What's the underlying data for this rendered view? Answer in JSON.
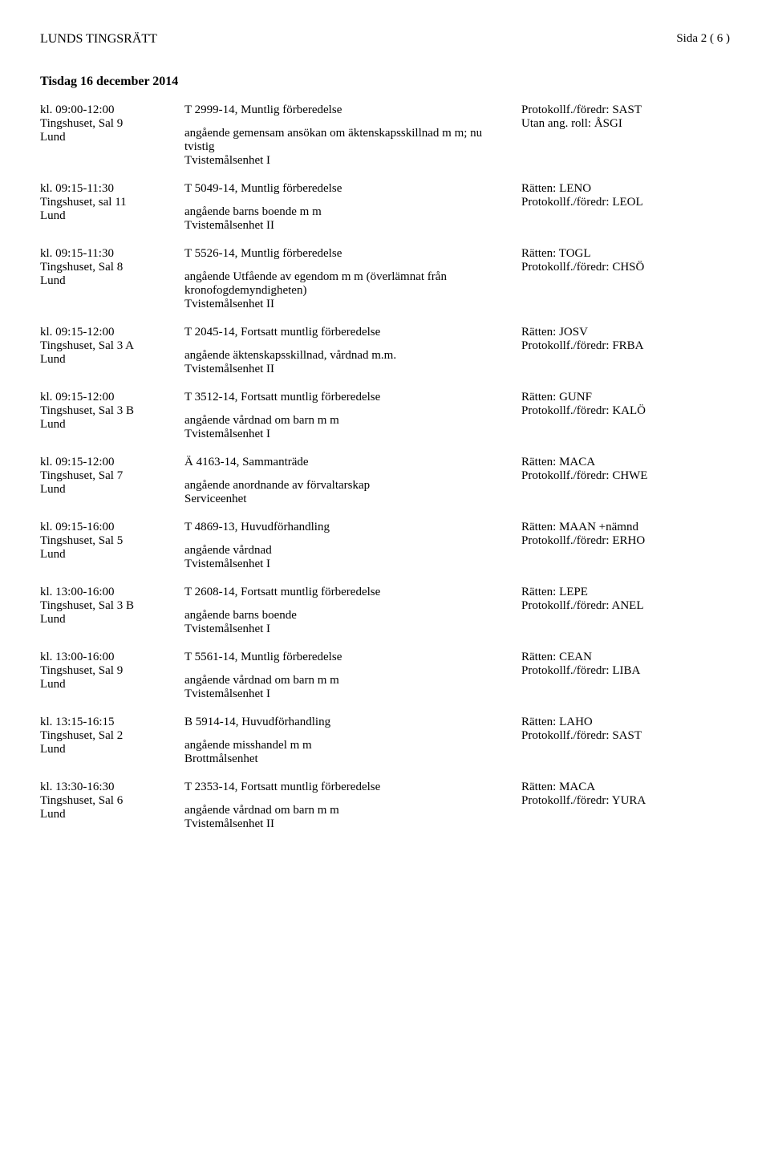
{
  "header": {
    "court": "LUNDS TINGSRÄTT",
    "page": "Sida 2 ( 6 )"
  },
  "dateHeading": "Tisdag 16 december 2014",
  "entries": [
    {
      "time": "kl. 09:00-12:00",
      "room": "Tingshuset, Sal 9",
      "city": "Lund",
      "caseTitle": "T 2999-14, Muntlig förberedelse",
      "caseDesc": "angående gemensam ansökan om äktenskapsskillnad m m; nu tvistig",
      "caseUnit": "Tvistemålsenhet I",
      "ratten": "",
      "protokoll": "Protokollf./föredr: SAST",
      "extra": "Utan ang. roll:  ÅSGI"
    },
    {
      "time": "kl. 09:15-11:30",
      "room": "Tingshuset, sal 11",
      "city": "Lund",
      "caseTitle": "T 5049-14, Muntlig förberedelse",
      "caseDesc": "angående barns boende m m",
      "caseUnit": "Tvistemålsenhet II",
      "ratten": "Rätten: LENO",
      "protokoll": "Protokollf./föredr: LEOL",
      "extra": ""
    },
    {
      "time": "kl. 09:15-11:30",
      "room": "Tingshuset, Sal 8",
      "city": "Lund",
      "caseTitle": "T 5526-14, Muntlig förberedelse",
      "caseDesc": "angående Utfående av egendom m m (överlämnat från kronofogdemyndigheten)",
      "caseUnit": "Tvistemålsenhet II",
      "ratten": "Rätten: TOGL",
      "protokoll": "Protokollf./föredr: CHSÖ",
      "extra": ""
    },
    {
      "time": "kl. 09:15-12:00",
      "room": "Tingshuset, Sal 3 A",
      "city": "Lund",
      "caseTitle": "T 2045-14, Fortsatt muntlig förberedelse",
      "caseDesc": "angående äktenskapsskillnad, vårdnad m.m.",
      "caseUnit": "Tvistemålsenhet II",
      "ratten": "Rätten: JOSV",
      "protokoll": "Protokollf./föredr: FRBA",
      "extra": ""
    },
    {
      "time": "kl. 09:15-12:00",
      "room": "Tingshuset, Sal 3 B",
      "city": "Lund",
      "caseTitle": "T 3512-14, Fortsatt muntlig förberedelse",
      "caseDesc": "angående vårdnad om barn m m",
      "caseUnit": "Tvistemålsenhet I",
      "ratten": "Rätten: GUNF",
      "protokoll": "Protokollf./föredr: KALÖ",
      "extra": ""
    },
    {
      "time": "kl. 09:15-12:00",
      "room": "Tingshuset, Sal 7",
      "city": "Lund",
      "caseTitle": "Ä 4163-14, Sammanträde",
      "caseDesc": "angående anordnande av förvaltarskap",
      "caseUnit": "Serviceenhet",
      "ratten": "Rätten: MACA",
      "protokoll": "Protokollf./föredr: CHWE",
      "extra": ""
    },
    {
      "time": "kl. 09:15-16:00",
      "room": "Tingshuset, Sal 5",
      "city": "Lund",
      "caseTitle": "T 4869-13, Huvudförhandling",
      "caseDesc": "angående vårdnad",
      "caseUnit": "Tvistemålsenhet I",
      "ratten": "Rätten: MAAN  +nämnd",
      "protokoll": "Protokollf./föredr: ERHO",
      "extra": ""
    },
    {
      "time": "kl. 13:00-16:00",
      "room": "Tingshuset, Sal 3 B",
      "city": "Lund",
      "caseTitle": "T 2608-14, Fortsatt muntlig förberedelse",
      "caseDesc": "angående barns boende",
      "caseUnit": "Tvistemålsenhet I",
      "ratten": "Rätten: LEPE",
      "protokoll": "Protokollf./föredr: ANEL",
      "extra": ""
    },
    {
      "time": "kl. 13:00-16:00",
      "room": "Tingshuset, Sal 9",
      "city": "Lund",
      "caseTitle": "T 5561-14, Muntlig förberedelse",
      "caseDesc": "angående vårdnad om barn m m",
      "caseUnit": "Tvistemålsenhet I",
      "ratten": "Rätten: CEAN",
      "protokoll": "Protokollf./föredr: LIBA",
      "extra": ""
    },
    {
      "time": "kl. 13:15-16:15",
      "room": "Tingshuset, Sal 2",
      "city": "Lund",
      "caseTitle": "B 5914-14, Huvudförhandling",
      "caseDesc": "angående misshandel m m",
      "caseUnit": "Brottmålsenhet",
      "ratten": "Rätten: LAHO",
      "protokoll": "Protokollf./föredr: SAST",
      "extra": ""
    },
    {
      "time": "kl. 13:30-16:30",
      "room": "Tingshuset, Sal 6",
      "city": "Lund",
      "caseTitle": "T 2353-14, Fortsatt muntlig förberedelse",
      "caseDesc": "angående vårdnad om barn m m",
      "caseUnit": "Tvistemålsenhet II",
      "ratten": "Rätten: MACA",
      "protokoll": "Protokollf./föredr: YURA",
      "extra": ""
    }
  ]
}
